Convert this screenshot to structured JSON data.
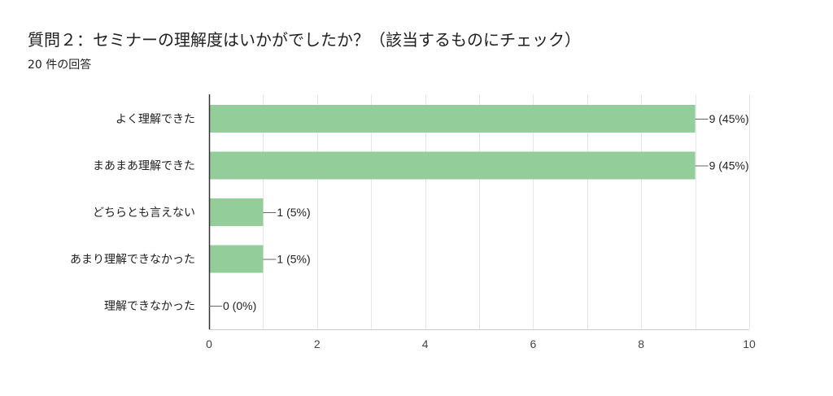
{
  "header": {
    "title": "質問２：セミナーの理解度はいかがでしたか？（該当するものにチェック）",
    "response_count": "20 件の回答"
  },
  "colors": {
    "bar": "#93ce9a",
    "grid": "#e6e6e6",
    "axis": "#333333",
    "leader": "#666666"
  },
  "chart_data": {
    "type": "bar",
    "orientation": "horizontal",
    "title": "質問２：セミナーの理解度はいかがでしたか？（該当するものにチェック）",
    "subtitle": "20 件の回答",
    "categories": [
      "よく理解できた",
      "まあまあ理解できた",
      "どちらとも言えない",
      "あまり理解できなかった",
      "理解できなかった"
    ],
    "values": [
      9,
      9,
      1,
      1,
      0
    ],
    "data_labels": [
      "9 (45%)",
      "9 (45%)",
      "1 (5%)",
      "1 (5%)",
      "0 (0%)"
    ],
    "xlim": [
      0,
      10
    ],
    "xticks": [
      0,
      2,
      4,
      6,
      8,
      10
    ],
    "xtick_labels": [
      "0",
      "2",
      "4",
      "6",
      "8",
      "10"
    ],
    "grid": true,
    "legend": "none"
  }
}
